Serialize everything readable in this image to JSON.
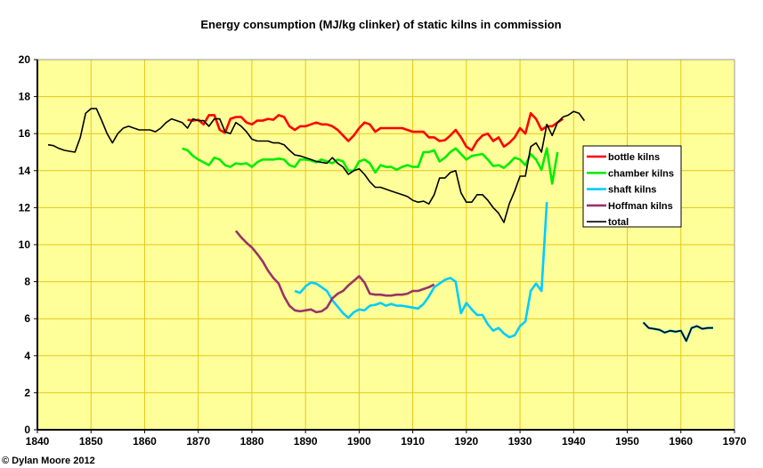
{
  "chart_data": {
    "type": "line",
    "title": "Energy consumption (MJ/kg clinker) of static kilns in commission",
    "xlabel": "",
    "ylabel": "",
    "xlim": [
      1840,
      1970
    ],
    "ylim": [
      0,
      20
    ],
    "xticks": [
      "1840",
      "1850",
      "1860",
      "1870",
      "1880",
      "1890",
      "1900",
      "1910",
      "1920",
      "1930",
      "1940",
      "1950",
      "1960",
      "1970"
    ],
    "yticks": [
      "0",
      "2",
      "4",
      "6",
      "8",
      "10",
      "12",
      "14",
      "16",
      "18",
      "20"
    ],
    "grid": true,
    "legend_placement": "right",
    "background": "#FFFF99",
    "grid_color": "#E6C619",
    "series": [
      {
        "name": "bottle kilns",
        "color": "#FF0000",
        "segments": [
          {
            "start": 1868,
            "values": [
              16.75,
              16.7,
              16.75,
              16.5,
              17.0,
              17.0,
              16.2,
              16.05,
              16.8,
              16.9,
              16.9,
              16.6,
              16.5,
              16.7,
              16.7,
              16.8,
              16.75,
              17.0,
              16.9,
              16.4,
              16.2,
              16.4,
              16.4,
              16.5,
              16.6,
              16.5,
              16.5,
              16.4,
              16.2,
              15.9,
              15.6,
              15.9,
              16.3,
              16.6,
              16.5,
              16.1,
              16.3,
              16.3,
              16.3,
              16.3,
              16.3,
              16.2,
              16.1,
              16.1,
              16.1,
              15.8,
              15.8,
              15.6,
              15.65,
              15.9,
              16.2,
              15.8,
              15.3,
              15.1,
              15.6,
              15.9,
              16.0,
              15.6,
              15.8,
              15.3,
              15.5,
              15.8,
              16.3,
              16.0,
              17.1,
              16.8,
              16.2,
              16.4,
              16.4,
              16.6,
              16.8
            ]
          }
        ]
      },
      {
        "name": "chamber kilns",
        "color": "#00EE00",
        "segments": [
          {
            "start": 1867,
            "values": [
              15.2,
              15.1,
              14.8,
              14.6,
              14.45,
              14.3,
              14.7,
              14.6,
              14.3,
              14.2,
              14.4,
              14.35,
              14.4,
              14.2,
              14.45,
              14.6,
              14.6,
              14.6,
              14.65,
              14.6,
              14.3,
              14.2,
              14.6,
              14.6,
              14.55,
              14.45,
              14.6,
              14.5,
              14.4,
              14.6,
              14.5,
              14.0,
              14.0,
              14.5,
              14.6,
              14.4,
              13.9,
              14.3,
              14.2,
              14.2,
              14.05,
              14.2,
              14.3,
              14.2,
              14.2,
              15.0,
              15.0,
              15.1,
              14.5,
              14.7,
              15.0,
              15.2,
              14.9,
              14.6,
              14.8,
              14.85,
              14.9,
              14.6,
              14.25,
              14.3,
              14.15,
              14.4,
              14.7,
              14.6,
              14.3,
              14.9,
              14.6,
              14.05,
              15.2,
              13.3,
              15.0
            ]
          }
        ]
      },
      {
        "name": "shaft kilns",
        "color": "#00CCFF",
        "segments": [
          {
            "start": 1888,
            "values": [
              7.5,
              7.4,
              7.75,
              7.95,
              7.9,
              7.7,
              7.5,
              7.0,
              6.65,
              6.3,
              6.05,
              6.35,
              6.5,
              6.45,
              6.7,
              6.75,
              6.85,
              6.7,
              6.8,
              6.7,
              6.7,
              6.65,
              6.6,
              6.55,
              6.8,
              7.2,
              7.7,
              7.9,
              8.1,
              8.2,
              8.0,
              6.3,
              6.85,
              6.5,
              6.2,
              6.2,
              5.7,
              5.35,
              5.5,
              5.2,
              5.0,
              5.1,
              5.6,
              5.85,
              7.5,
              7.9,
              7.5,
              12.3
            ]
          },
          {
            "start": 1953,
            "values": [
              5.8,
              5.5,
              5.45,
              5.4,
              5.25,
              5.35,
              5.3,
              5.35,
              4.8,
              5.5,
              5.6,
              5.45,
              5.5,
              5.5
            ]
          }
        ]
      },
      {
        "name": "Hoffman kilns",
        "color": "#993366",
        "segments": [
          {
            "start": 1877,
            "values": [
              10.75,
              10.4,
              10.1,
              9.85,
              9.5,
              9.1,
              8.6,
              8.2,
              7.9,
              7.2,
              6.7,
              6.45,
              6.4,
              6.45,
              6.5,
              6.35,
              6.4,
              6.6,
              7.1,
              7.35,
              7.5,
              7.8,
              8.05,
              8.3,
              7.95,
              7.35,
              7.3,
              7.3,
              7.25,
              7.25,
              7.3,
              7.3,
              7.35,
              7.5,
              7.5,
              7.6,
              7.7,
              7.85
            ]
          }
        ]
      },
      {
        "name": "total",
        "color": "#000000",
        "segments": [
          {
            "start": 1842,
            "values": [
              15.4,
              15.35,
              15.2,
              15.1,
              15.05,
              15.0,
              15.8,
              17.1,
              17.35,
              17.35,
              16.7,
              16.0,
              15.5,
              16.0,
              16.3,
              16.4,
              16.3,
              16.2,
              16.2,
              16.2,
              16.1,
              16.3,
              16.6,
              16.8,
              16.7,
              16.6,
              16.3,
              16.8,
              16.7,
              16.7,
              16.4,
              16.8,
              16.8,
              16.1,
              16.0,
              16.6,
              16.4,
              16.1,
              15.7,
              15.6,
              15.6,
              15.6,
              15.5,
              15.5,
              15.4,
              15.1,
              14.85,
              14.8,
              14.7,
              14.6,
              14.5,
              14.45,
              14.4,
              14.7,
              14.4,
              14.2,
              13.8,
              14.0,
              14.1,
              13.8,
              13.4,
              13.1,
              13.1,
              13.0,
              12.9,
              12.8,
              12.7,
              12.6,
              12.4,
              12.3,
              12.35,
              12.2,
              12.7,
              13.6,
              13.6,
              13.9,
              14.0,
              12.8,
              12.3,
              12.3,
              12.7,
              12.7,
              12.4,
              12.0,
              11.7,
              11.2,
              12.2,
              12.9,
              13.7,
              13.7,
              15.3,
              15.5,
              15.0,
              16.5,
              15.9,
              16.6,
              16.9,
              17.0,
              17.2,
              17.1,
              16.7
            ]
          },
          {
            "start": 1953,
            "values": [
              5.8,
              5.5,
              5.45,
              5.4,
              5.25,
              5.35,
              5.3,
              5.35,
              4.8,
              5.5,
              5.6,
              5.45,
              5.5,
              5.5
            ]
          }
        ]
      }
    ]
  },
  "credit": "© Dylan Moore 2012"
}
